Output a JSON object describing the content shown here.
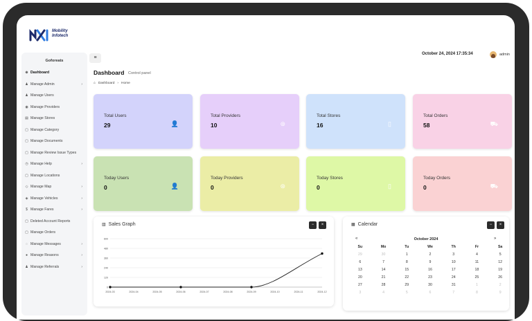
{
  "brand": {
    "line1": "Mobility",
    "line2": "Infotech"
  },
  "header": {
    "datetime": "October 24, 2024 17:35:34",
    "user": "admin"
  },
  "sidebar": {
    "title": "Goforeats",
    "items": [
      {
        "label": "Dashboard",
        "icon": "dashboard-icon",
        "glyph": "⊕",
        "caret": false,
        "active": true
      },
      {
        "label": "Manage Admin",
        "icon": "admin-icon",
        "glyph": "♟",
        "caret": true
      },
      {
        "label": "Manage Users",
        "icon": "users-icon",
        "glyph": "♟",
        "caret": false
      },
      {
        "label": "Manage Providers",
        "icon": "providers-icon",
        "glyph": "◉",
        "caret": false
      },
      {
        "label": "Manage Stores",
        "icon": "stores-icon",
        "glyph": "▤",
        "caret": false
      },
      {
        "label": "Manage Category",
        "icon": "category-icon",
        "glyph": "▢",
        "caret": false
      },
      {
        "label": "Manage Documents",
        "icon": "documents-icon",
        "glyph": "▢",
        "caret": false
      },
      {
        "label": "Manage Review Issue Types",
        "icon": "review-icon",
        "glyph": "▢",
        "caret": false
      },
      {
        "label": "Manage Help",
        "icon": "help-icon",
        "glyph": "◷",
        "caret": true
      },
      {
        "label": "Manage Locations",
        "icon": "locations-icon",
        "glyph": "▢",
        "caret": false
      },
      {
        "label": "Manage Map",
        "icon": "map-icon",
        "glyph": "◇",
        "caret": true
      },
      {
        "label": "Manage Vehicles",
        "icon": "vehicles-icon",
        "glyph": "◈",
        "caret": true
      },
      {
        "label": "Manage Fares",
        "icon": "fares-icon",
        "glyph": "$",
        "caret": true
      },
      {
        "label": "Deleted Account Reports",
        "icon": "deleted-icon",
        "glyph": "▢",
        "caret": false
      },
      {
        "label": "Manage Orders",
        "icon": "orders-icon",
        "glyph": "▢",
        "caret": false
      },
      {
        "label": "Manage Messages",
        "icon": "messages-icon",
        "glyph": "◌",
        "caret": true
      },
      {
        "label": "Manage Reasons",
        "icon": "reasons-icon",
        "glyph": "●",
        "caret": true
      },
      {
        "label": "Manage Referrals",
        "icon": "referrals-icon",
        "glyph": "♟",
        "caret": true
      }
    ]
  },
  "page": {
    "title": "Dashboard",
    "subtitle": "Control panel",
    "crumb_root": "Dashboard",
    "crumb_current": "Home"
  },
  "cards": [
    {
      "label": "Total Users",
      "value": "29",
      "color": "#d3d3fb",
      "icon": "user-icon",
      "glyph": "👤"
    },
    {
      "label": "Total Providers",
      "value": "10",
      "color": "#e6cffa",
      "icon": "provider-icon",
      "glyph": "⊛"
    },
    {
      "label": "Total Stores",
      "value": "16",
      "color": "#cfe2fb",
      "icon": "store-icon",
      "glyph": "▯"
    },
    {
      "label": "Total Orders",
      "value": "58",
      "color": "#f9d2e6",
      "icon": "cart-icon",
      "glyph": "⛟"
    },
    {
      "label": "Today Users",
      "value": "0",
      "color": "#c9e2b3",
      "icon": "user-icon",
      "glyph": "👤"
    },
    {
      "label": "Today Providers",
      "value": "0",
      "color": "#ebeda6",
      "icon": "provider-icon",
      "glyph": "⊛"
    },
    {
      "label": "Today Stores",
      "value": "0",
      "color": "#def8a6",
      "icon": "store-icon",
      "glyph": "▯"
    },
    {
      "label": "Today Orders",
      "value": "0",
      "color": "#fad2d3",
      "icon": "cart-icon",
      "glyph": "⛟"
    }
  ],
  "graph_panel": {
    "title": "Sales Graph",
    "minimize": "−",
    "close": "×"
  },
  "chart_data": {
    "type": "line",
    "title": "",
    "x": [
      "2024-03",
      "2024-04",
      "2024-05",
      "2024-06",
      "2024-07",
      "2024-08",
      "2024-09",
      "2024-10",
      "2024-11",
      "2024-12"
    ],
    "y_ticks": [
      "0",
      "120",
      "240",
      "360",
      "480",
      "600"
    ],
    "ylim": [
      0,
      600
    ],
    "series": [
      {
        "values": [
          0,
          null,
          null,
          0,
          null,
          null,
          0,
          null,
          null,
          416
        ]
      }
    ],
    "grid": true
  },
  "calendar": {
    "title": "Calendar",
    "month": "October 2024",
    "prev": "«",
    "next": "»",
    "minimize": "−",
    "close": "×",
    "days": [
      "Su",
      "Mo",
      "Tu",
      "We",
      "Th",
      "Fr",
      "Sa"
    ],
    "weeks": [
      [
        "29",
        "30",
        "1",
        "2",
        "3",
        "4",
        "5"
      ],
      [
        "6",
        "7",
        "8",
        "9",
        "10",
        "11",
        "12"
      ],
      [
        "13",
        "14",
        "15",
        "16",
        "17",
        "18",
        "19"
      ],
      [
        "20",
        "21",
        "22",
        "23",
        "24",
        "25",
        "26"
      ],
      [
        "27",
        "28",
        "29",
        "30",
        "31",
        "1",
        "2"
      ],
      [
        "3",
        "4",
        "5",
        "6",
        "7",
        "8",
        "9"
      ]
    ],
    "muted": [
      [
        0,
        0
      ],
      [
        0,
        1
      ],
      [
        4,
        5
      ],
      [
        4,
        6
      ],
      [
        5,
        0
      ],
      [
        5,
        1
      ],
      [
        5,
        2
      ],
      [
        5,
        3
      ],
      [
        5,
        4
      ],
      [
        5,
        5
      ],
      [
        5,
        6
      ]
    ]
  }
}
